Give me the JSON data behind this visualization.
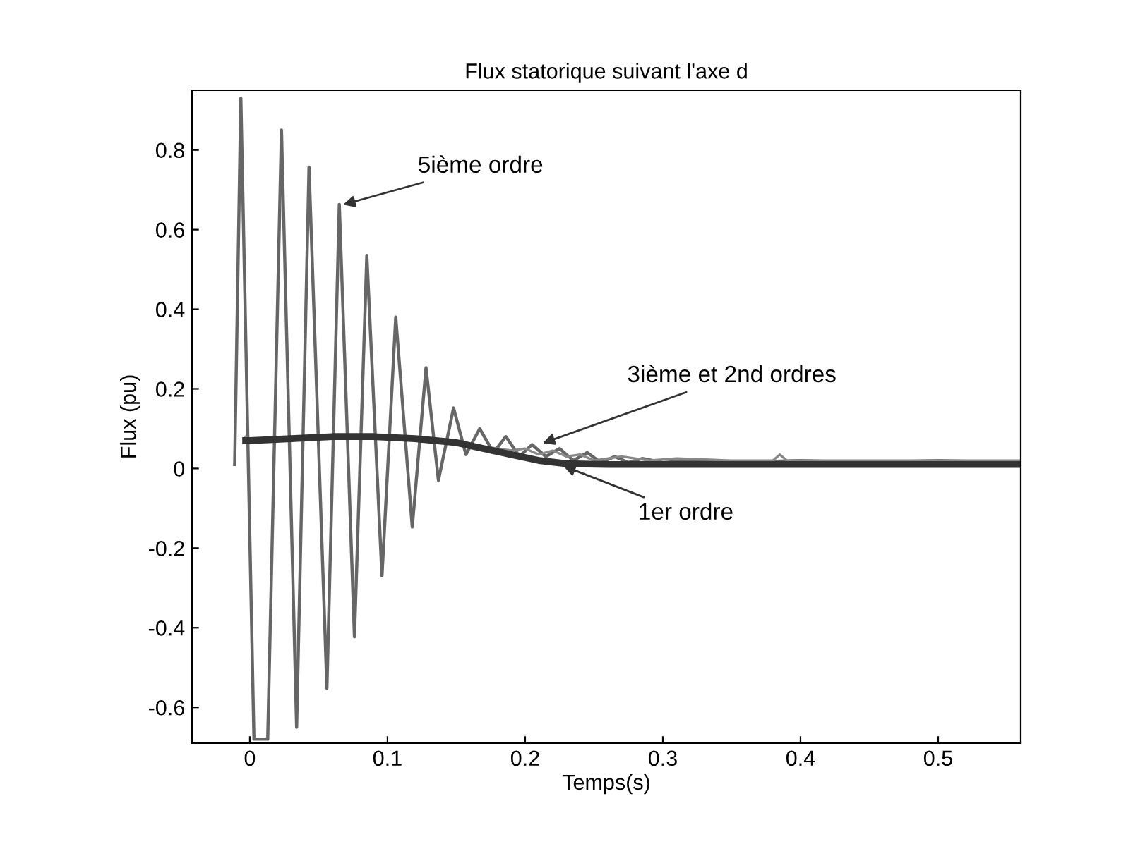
{
  "chart_data": {
    "type": "line",
    "title": "Flux statorique suivant l'axe d",
    "xlabel": "Temps(s)",
    "ylabel": "Flux (pu)",
    "xlim": [
      -0.042,
      0.56
    ],
    "ylim": [
      -0.69,
      0.95
    ],
    "xticks": [
      0,
      0.1,
      0.2,
      0.3,
      0.4,
      0.5
    ],
    "yticks": [
      -0.6,
      -0.4,
      -0.2,
      0,
      0.2,
      0.4,
      0.6,
      0.8
    ],
    "grid": false,
    "legend": false,
    "line_style": "solid",
    "marker": "none",
    "series": [
      {
        "color": "#666666",
        "x": [
          -0.011,
          -0.0065,
          0.003,
          0.013,
          0.023,
          0.034,
          0.043,
          0.056,
          0.065,
          0.076,
          0.085,
          0.096,
          0.106,
          0.118,
          0.128,
          0.137,
          0.148,
          0.157,
          0.167,
          0.177,
          0.186,
          0.196,
          0.205,
          0.215,
          0.225,
          0.235,
          0.245,
          0.255,
          0.265,
          0.275,
          0.285,
          0.3,
          0.32,
          0.35,
          0.4,
          0.45,
          0.5,
          0.56
        ],
        "values": [
          0.01,
          0.93,
          -0.68,
          -0.68,
          0.85,
          -0.65,
          0.757,
          -0.552,
          0.663,
          -0.423,
          0.535,
          -0.27,
          0.38,
          -0.147,
          0.253,
          -0.03,
          0.152,
          0.035,
          0.1,
          0.04,
          0.08,
          0.03,
          0.06,
          0.03,
          0.05,
          0.02,
          0.04,
          0.015,
          0.03,
          0.015,
          0.025,
          0.015,
          0.02,
          0.015,
          0.02,
          0.015,
          0.02,
          0.015
        ]
      },
      {
        "color": "#888888",
        "x": [
          -0.003,
          0.0,
          0.03,
          0.06,
          0.09,
          0.12,
          0.15,
          0.17,
          0.19,
          0.2,
          0.21,
          0.22,
          0.23,
          0.24,
          0.25,
          0.27,
          0.29,
          0.31,
          0.35,
          0.38,
          0.385,
          0.39,
          0.45,
          0.56
        ],
        "values": [
          0.08,
          0.07,
          0.078,
          0.082,
          0.08,
          0.077,
          0.068,
          0.055,
          0.045,
          0.05,
          0.035,
          0.045,
          0.03,
          0.035,
          0.02,
          0.03,
          0.02,
          0.025,
          0.02,
          0.02,
          0.035,
          0.02,
          0.02,
          0.02
        ]
      },
      {
        "color": "#333333",
        "x": [
          -0.003,
          0.0,
          0.03,
          0.06,
          0.09,
          0.12,
          0.15,
          0.17,
          0.19,
          0.21,
          0.23,
          0.26,
          0.3,
          0.4,
          0.5,
          0.56
        ],
        "values": [
          0.07,
          0.07,
          0.075,
          0.08,
          0.08,
          0.075,
          0.065,
          0.05,
          0.035,
          0.02,
          0.012,
          0.01,
          0.01,
          0.01,
          0.01,
          0.01
        ]
      }
    ],
    "annotations": [
      {
        "text": "5ième ordre",
        "x": 0.065,
        "y": 0.66
      },
      {
        "text": "3ième et 2nd ordres",
        "x": 0.21,
        "y": 0.06
      },
      {
        "text": "1er ordre",
        "x": 0.225,
        "y": 0.01
      }
    ]
  }
}
